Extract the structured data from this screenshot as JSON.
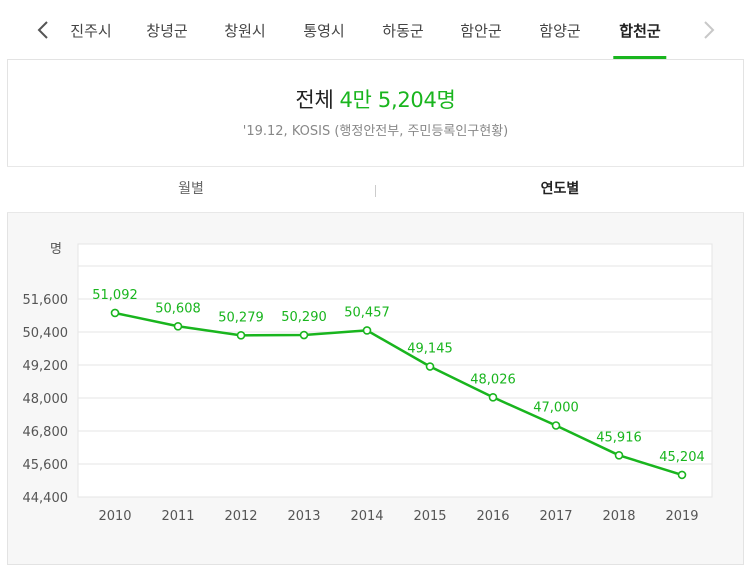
{
  "tabs": {
    "items": [
      "진주시",
      "창녕군",
      "창원시",
      "통영시",
      "하동군",
      "함안군",
      "함양군",
      "합천군"
    ],
    "active": "합천군"
  },
  "summary": {
    "label": "전체",
    "value": "4만 5,204명",
    "source": "'19.12, KOSIS (행정안전부, 주민등록인구현황)"
  },
  "subtabs": {
    "monthly": "월별",
    "yearly": "연도별",
    "active": "연도별"
  },
  "colors": {
    "accent": "#19b51e"
  },
  "chart_data": {
    "type": "line",
    "unit": "명",
    "categories": [
      "2010",
      "2011",
      "2012",
      "2013",
      "2014",
      "2015",
      "2016",
      "2017",
      "2018",
      "2019"
    ],
    "series": [
      {
        "values": [
          51092,
          50608,
          50279,
          50290,
          50457,
          49145,
          48026,
          47000,
          45916,
          45204
        ],
        "labels": [
          "51,092",
          "50,608",
          "50,279",
          "50,290",
          "50,457",
          "49,145",
          "48,026",
          "47,000",
          "45,916",
          "45,204"
        ]
      }
    ],
    "yticks": [
      44400,
      45600,
      46800,
      48000,
      49200,
      50400,
      51600
    ],
    "ytick_labels": [
      "44,400",
      "45,600",
      "46,800",
      "48,000",
      "49,200",
      "50,400",
      "51,600"
    ],
    "ylim": [
      44400,
      53600
    ],
    "grid": true
  }
}
